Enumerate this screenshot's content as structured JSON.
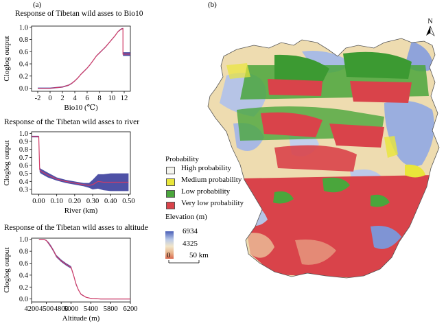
{
  "panels": {
    "a": "(a)",
    "b": "(b)"
  },
  "chart_data": [
    {
      "type": "line",
      "title": "Response of Tibetan wild asses to Bio10",
      "xlabel": "Bio10 (℃)",
      "ylabel": "Cloglog output",
      "xlim": [
        -3,
        13
      ],
      "ylim": [
        -0.05,
        1.02
      ],
      "xticks": [
        -2,
        0,
        2,
        4,
        6,
        8,
        10,
        12
      ],
      "yticks": [
        0.0,
        0.2,
        0.4,
        0.6,
        0.8,
        1.0
      ],
      "series": [
        {
          "x": [
            -2,
            -1,
            0,
            1,
            2,
            3,
            3.5,
            4,
            4.5,
            5,
            5.5,
            6,
            6.5,
            7,
            7.5,
            8,
            8.5,
            9,
            9.5,
            10,
            10.5,
            11,
            11.5,
            11.8,
            11.8,
            12.2,
            13
          ],
          "y": [
            0.0,
            0.0,
            0.0,
            0.01,
            0.02,
            0.05,
            0.08,
            0.12,
            0.17,
            0.23,
            0.28,
            0.33,
            0.39,
            0.46,
            0.53,
            0.58,
            0.63,
            0.68,
            0.74,
            0.8,
            0.86,
            0.93,
            0.97,
            0.98,
            0.56,
            0.56,
            0.56
          ],
          "spread": [
            0.01,
            0.01,
            0.01,
            0.01,
            0.01,
            0.01,
            0.01,
            0.01,
            0.01,
            0.01,
            0.01,
            0.01,
            0.01,
            0.01,
            0.01,
            0.01,
            0.01,
            0.01,
            0.01,
            0.01,
            0.01,
            0.01,
            0.01,
            0.01,
            0.03,
            0.03,
            0.03
          ]
        }
      ]
    },
    {
      "type": "line",
      "title": "Response of the Tibetan wild asses to river",
      "xlabel": "River (km)",
      "ylabel": "Cloglog output",
      "xlim": [
        -0.04,
        0.51
      ],
      "ylim": [
        0.24,
        1.02
      ],
      "xticks": [
        0.0,
        0.1,
        0.2,
        0.3,
        0.4,
        0.5
      ],
      "xtick_labels": [
        "0.00",
        "0.10",
        "0.20",
        "0.30",
        "0.40",
        "0.50"
      ],
      "yticks": [
        0.3,
        0.4,
        0.5,
        0.6,
        0.7,
        0.8,
        0.9,
        1.0
      ],
      "series": [
        {
          "x": [
            -0.04,
            0.0,
            0.005,
            0.01,
            0.05,
            0.1,
            0.15,
            0.2,
            0.25,
            0.28,
            0.3,
            0.33,
            0.36,
            0.4,
            0.45,
            0.5
          ],
          "y": [
            0.96,
            0.96,
            0.55,
            0.53,
            0.48,
            0.43,
            0.4,
            0.38,
            0.36,
            0.35,
            0.36,
            0.4,
            0.39,
            0.39,
            0.39,
            0.39
          ],
          "spread": [
            0.01,
            0.01,
            0.03,
            0.03,
            0.03,
            0.02,
            0.02,
            0.02,
            0.02,
            0.03,
            0.06,
            0.09,
            0.1,
            0.11,
            0.11,
            0.11
          ]
        }
      ]
    },
    {
      "type": "line",
      "title": "Response of the Tibetan wild asses to altitude",
      "xlabel": "Altitude (m)",
      "ylabel": "Cloglog output",
      "xlim": [
        4200,
        6200
      ],
      "ylim": [
        -0.05,
        1.02
      ],
      "xticks": [
        4200,
        4500,
        4800,
        5000,
        5400,
        5800,
        6200
      ],
      "yticks": [
        0.0,
        0.2,
        0.4,
        0.6,
        0.8,
        1.0
      ],
      "series": [
        {
          "x": [
            4350,
            4450,
            4500,
            4550,
            4600,
            4650,
            4700,
            4800,
            4900,
            5000,
            5050,
            5100,
            5150,
            5200,
            5300,
            5400,
            5600,
            6200
          ],
          "y": [
            1.0,
            1.0,
            0.98,
            0.93,
            0.87,
            0.8,
            0.72,
            0.64,
            0.58,
            0.53,
            0.4,
            0.25,
            0.15,
            0.08,
            0.03,
            0.01,
            0.0,
            0.0
          ],
          "spread": [
            0.005,
            0.005,
            0.01,
            0.02,
            0.02,
            0.02,
            0.02,
            0.02,
            0.02,
            0.02,
            0.02,
            0.02,
            0.01,
            0.01,
            0.005,
            0.005,
            0.005,
            0.005
          ]
        }
      ]
    }
  ],
  "legend": {
    "probability_title": "Probability",
    "items": [
      {
        "label": "High probability",
        "color": "#f4f4ee"
      },
      {
        "label": "Medium probability",
        "color": "#e9e63a"
      },
      {
        "label": "Low probability",
        "color": "#4aa63c"
      },
      {
        "label": "Very low probability",
        "color": "#d9434a"
      }
    ],
    "elevation_title": "Elevation (m)",
    "elev_high": "6934",
    "elev_low": "4325",
    "elev_colors": [
      "#4a5fb8",
      "#b9c9e8",
      "#f2e6c8",
      "#e8b088",
      "#d9694e"
    ],
    "scale_zero": "0",
    "scale_label": "50 km",
    "north": "N"
  }
}
